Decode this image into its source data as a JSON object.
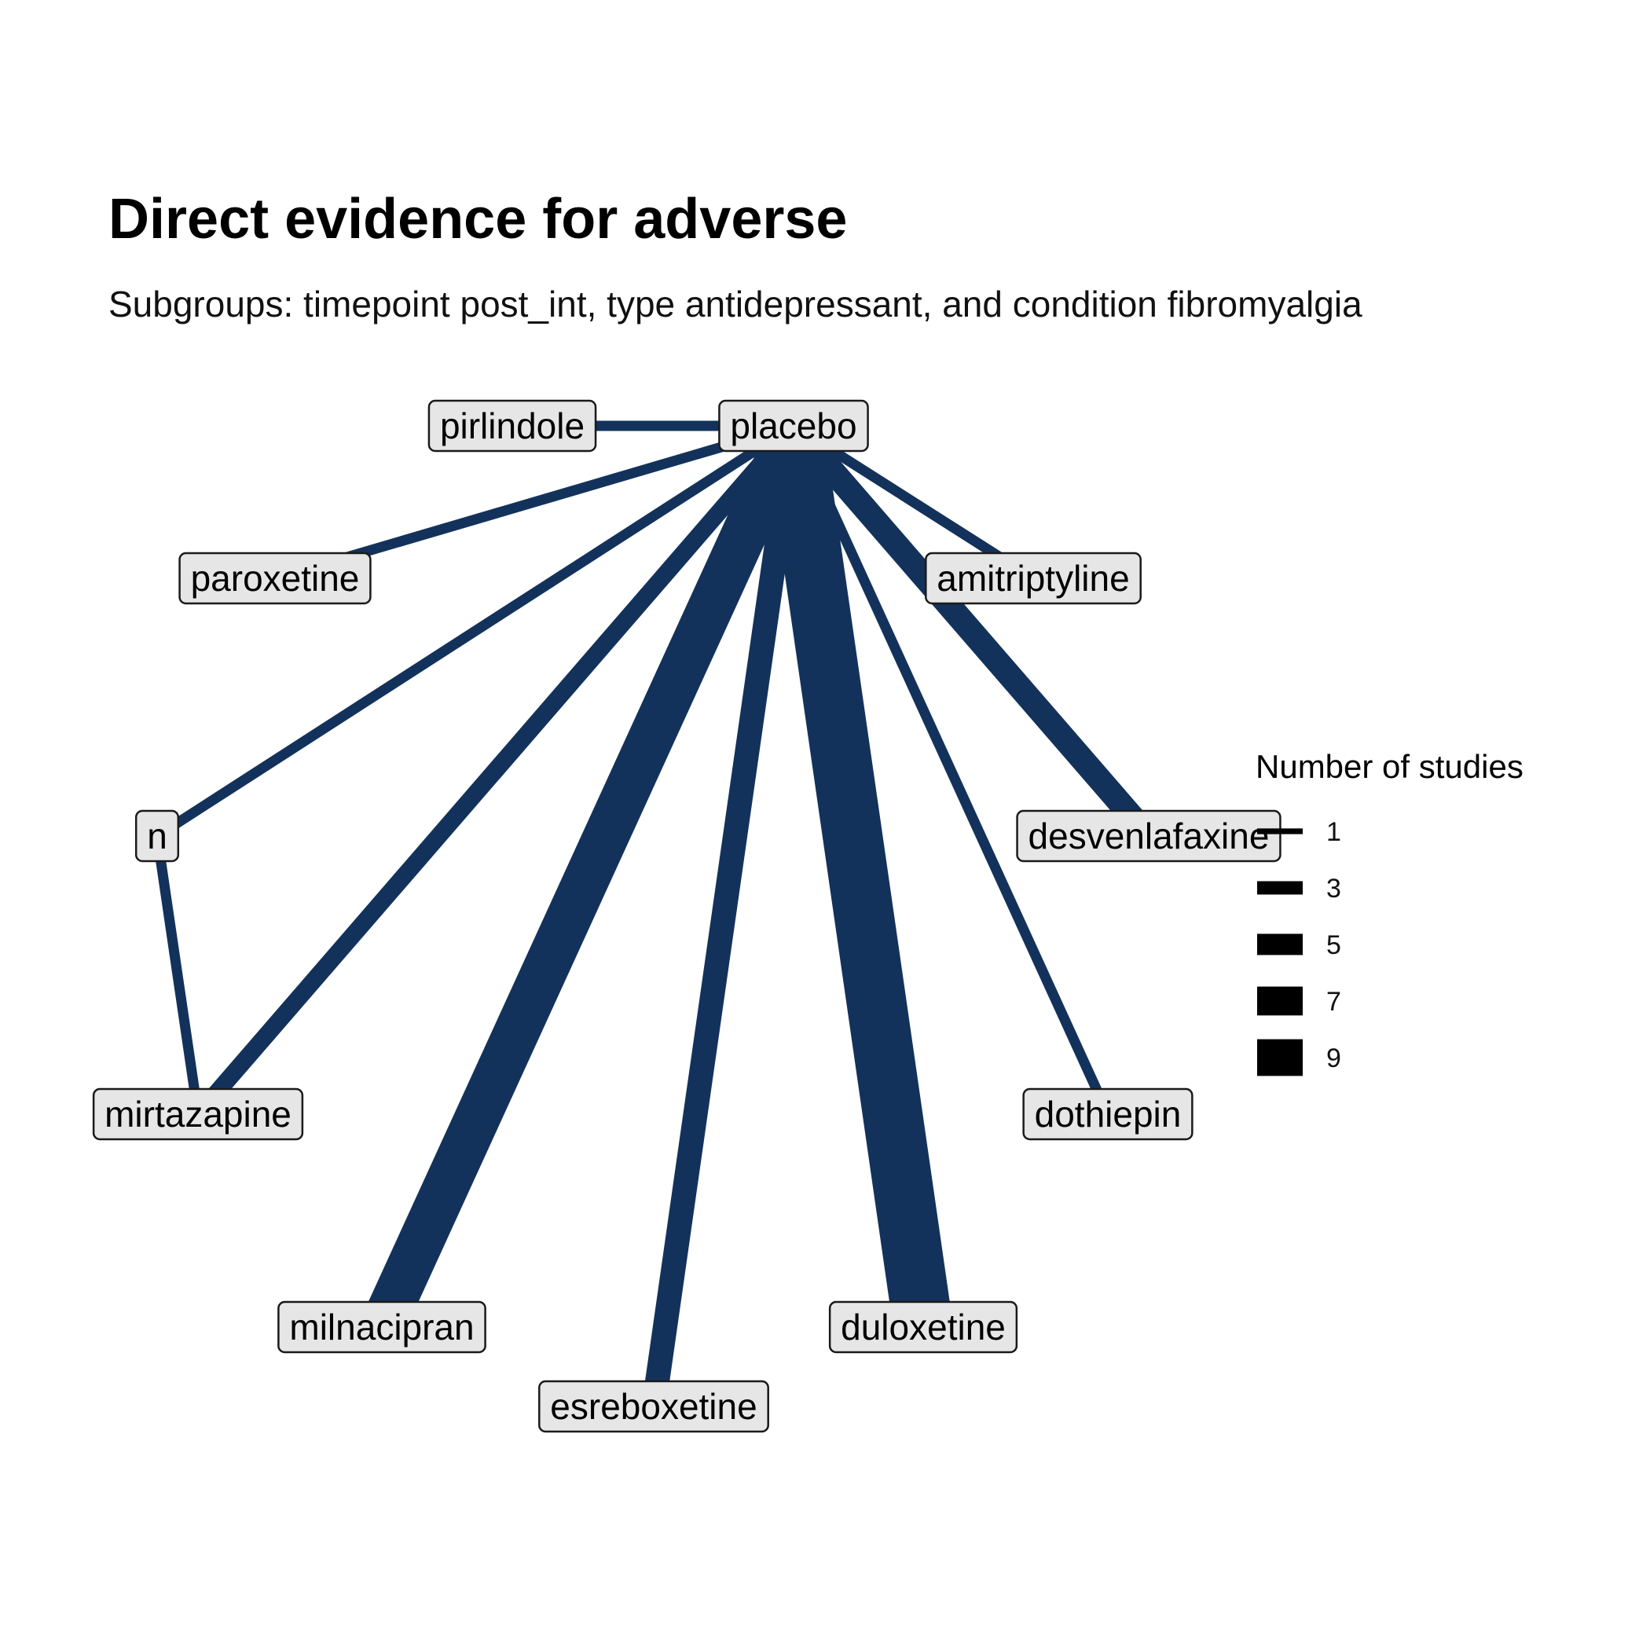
{
  "title": "Direct evidence for adverse",
  "subtitle": "Subgroups: timepoint post_int, type antidepressant, and condition fibromyalgia",
  "edge_color": "#13325b",
  "nodes": [
    {
      "id": "placebo",
      "label": "placebo"
    },
    {
      "id": "pirlindole",
      "label": "pirlindole"
    },
    {
      "id": "paroxetine",
      "label": "paroxetine"
    },
    {
      "id": "amitriptyline",
      "label": "amitriptyline"
    },
    {
      "id": "n",
      "label": "n"
    },
    {
      "id": "desvenlafaxine",
      "label": "desvenlafaxine"
    },
    {
      "id": "mirtazapine",
      "label": "mirtazapine"
    },
    {
      "id": "dothiepin",
      "label": "dothiepin"
    },
    {
      "id": "milnacipran",
      "label": "milnacipran"
    },
    {
      "id": "duloxetine",
      "label": "duloxetine"
    },
    {
      "id": "esreboxetine",
      "label": "esreboxetine"
    }
  ],
  "edges": [
    {
      "from": "placebo",
      "to": "pirlindole",
      "studies": 1
    },
    {
      "from": "placebo",
      "to": "paroxetine",
      "studies": 1
    },
    {
      "from": "placebo",
      "to": "n",
      "studies": 1
    },
    {
      "from": "placebo",
      "to": "amitriptyline",
      "studies": 1
    },
    {
      "from": "placebo",
      "to": "desvenlafaxine",
      "studies": 3
    },
    {
      "from": "placebo",
      "to": "dothiepin",
      "studies": 1
    },
    {
      "from": "placebo",
      "to": "mirtazapine",
      "studies": 2
    },
    {
      "from": "placebo",
      "to": "milnacipran",
      "studies": 6
    },
    {
      "from": "placebo",
      "to": "esreboxetine",
      "studies": 3
    },
    {
      "from": "placebo",
      "to": "duloxetine",
      "studies": 8
    },
    {
      "from": "n",
      "to": "mirtazapine",
      "studies": 1
    }
  ],
  "legend": {
    "title": "Number of studies",
    "items": [
      {
        "label": "1",
        "value": 1
      },
      {
        "label": "3",
        "value": 3
      },
      {
        "label": "5",
        "value": 5
      },
      {
        "label": "7",
        "value": 7
      },
      {
        "label": "9",
        "value": 9
      }
    ]
  }
}
